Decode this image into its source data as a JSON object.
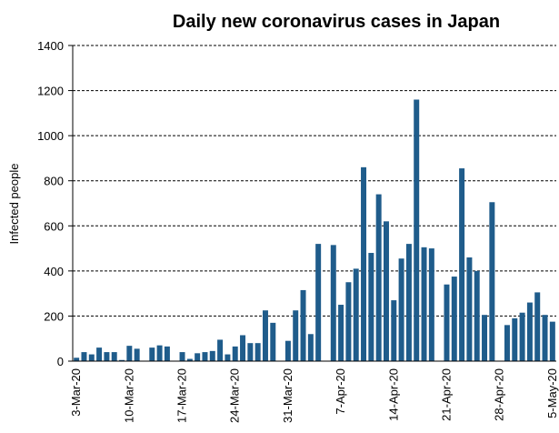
{
  "chart_data": {
    "type": "bar",
    "title": "Daily new coronavirus cases in Japan",
    "y_label": "Infected people",
    "categories": [
      "3-Mar-20",
      null,
      null,
      null,
      null,
      null,
      null,
      "10-Mar-20",
      null,
      null,
      null,
      null,
      null,
      null,
      "17-Mar-20",
      null,
      null,
      null,
      null,
      null,
      null,
      "24-Mar-20",
      null,
      null,
      null,
      null,
      null,
      null,
      "31-Mar-20",
      null,
      null,
      null,
      null,
      null,
      null,
      "7-Apr-20",
      null,
      null,
      null,
      null,
      null,
      null,
      "14-Apr-20",
      null,
      null,
      null,
      null,
      null,
      null,
      "21-Apr-20",
      null,
      null,
      null,
      null,
      null,
      null,
      "28-Apr-20",
      null,
      null,
      null,
      null,
      null,
      null,
      "5-May-20"
    ],
    "values": [
      15,
      40,
      30,
      60,
      40,
      40,
      5,
      68,
      55,
      0,
      60,
      70,
      65,
      0,
      40,
      10,
      35,
      40,
      45,
      95,
      30,
      65,
      115,
      80,
      80,
      225,
      170,
      0,
      90,
      225,
      315,
      120,
      520,
      0,
      515,
      250,
      350,
      410,
      860,
      480,
      740,
      620,
      270,
      455,
      520,
      1160,
      505,
      500,
      0,
      340,
      375,
      855,
      460,
      400,
      205,
      705,
      0,
      160,
      190,
      215,
      260,
      305,
      205,
      175
    ],
    "color": "#1f5c8b",
    "ylim": [
      0,
      1400
    ],
    "yticks": [
      0,
      200,
      400,
      600,
      800,
      1000,
      1200,
      1400
    ],
    "grid": true
  }
}
